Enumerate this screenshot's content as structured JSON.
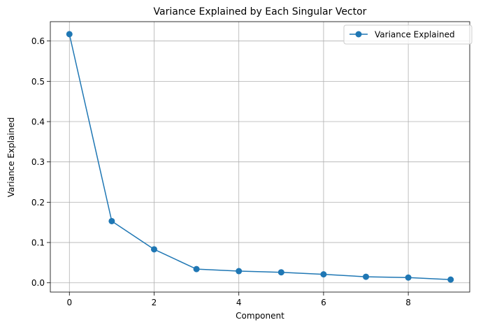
{
  "chart_data": {
    "type": "line",
    "title": "Variance Explained by Each Singular Vector",
    "xlabel": "Component",
    "ylabel": "Variance Explained",
    "xlim": [
      -0.45,
      9.45
    ],
    "ylim": [
      -0.023,
      0.648
    ],
    "xticks": [
      0,
      2,
      4,
      6,
      8
    ],
    "yticks": [
      0.0,
      0.1,
      0.2,
      0.3,
      0.4,
      0.5,
      0.6
    ],
    "xtick_labels": [
      "0",
      "2",
      "4",
      "6",
      "8"
    ],
    "ytick_labels": [
      "0.0",
      "0.1",
      "0.2",
      "0.3",
      "0.4",
      "0.5",
      "0.6"
    ],
    "grid": true,
    "legend_position": "top-right",
    "x": [
      0,
      1,
      2,
      3,
      4,
      5,
      6,
      7,
      8,
      9
    ],
    "series": [
      {
        "name": "Variance Explained",
        "color": "#1f77b4",
        "marker": "circle",
        "values": [
          0.617,
          0.153,
          0.083,
          0.034,
          0.029,
          0.026,
          0.021,
          0.015,
          0.013,
          0.008
        ]
      }
    ]
  }
}
